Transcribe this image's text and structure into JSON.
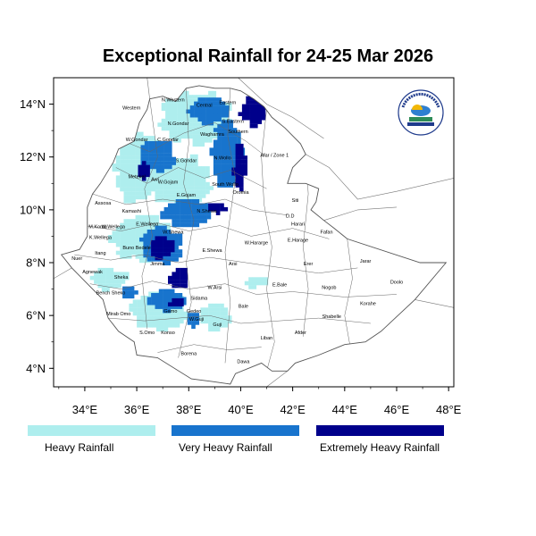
{
  "title": "Exceptional Rainfall for 24-25 Mar 2026",
  "axes": {
    "x_ticks": [
      "34°E",
      "36°E",
      "38°E",
      "40°E",
      "42°E",
      "44°E",
      "46°E",
      "48°E"
    ],
    "y_ticks": [
      "14°N",
      "12°N",
      "10°N",
      "8°N",
      "6°N",
      "4°N"
    ]
  },
  "legend": [
    {
      "label": "Heavy Rainfall",
      "color": "#aeeeee"
    },
    {
      "label": "Very Heavy Rainfall",
      "color": "#1874cd"
    },
    {
      "label": "Extremely Heavy Rainfall",
      "color": "#00008b"
    }
  ],
  "zones": [
    {
      "name": "Western",
      "lon": 35.8,
      "lat": 13.8
    },
    {
      "name": "N.Western",
      "lon": 37.4,
      "lat": 14.1
    },
    {
      "name": "Central",
      "lon": 38.6,
      "lat": 13.9
    },
    {
      "name": "Eastern",
      "lon": 39.5,
      "lat": 14.0
    },
    {
      "name": "N.Gondar",
      "lon": 37.6,
      "lat": 13.2
    },
    {
      "name": "S.Eastern",
      "lon": 39.7,
      "lat": 13.3
    },
    {
      "name": "Southern",
      "lon": 39.9,
      "lat": 12.9
    },
    {
      "name": "W.Gondar",
      "lon": 36.0,
      "lat": 12.6
    },
    {
      "name": "C.Gondar",
      "lon": 37.2,
      "lat": 12.6
    },
    {
      "name": "Waghamra",
      "lon": 38.9,
      "lat": 12.8
    },
    {
      "name": "Afar / Zone 1",
      "lon": 41.3,
      "lat": 12.0
    },
    {
      "name": "S.Gondar",
      "lon": 37.9,
      "lat": 11.8
    },
    {
      "name": "N.Wollo",
      "lon": 39.3,
      "lat": 11.9
    },
    {
      "name": "Metekel",
      "lon": 36.0,
      "lat": 11.2
    },
    {
      "name": "Awi",
      "lon": 36.7,
      "lat": 11.1
    },
    {
      "name": "W.Gojam",
      "lon": 37.2,
      "lat": 11.0
    },
    {
      "name": "South Wollo",
      "lon": 39.4,
      "lat": 10.9
    },
    {
      "name": "E.Gojam",
      "lon": 37.9,
      "lat": 10.5
    },
    {
      "name": "Oromia",
      "lon": 40.0,
      "lat": 10.6
    },
    {
      "name": "Siti",
      "lon": 42.1,
      "lat": 10.3
    },
    {
      "name": "Assosa",
      "lon": 34.7,
      "lat": 10.2
    },
    {
      "name": "Kamashi",
      "lon": 35.8,
      "lat": 9.9
    },
    {
      "name": "N.Shewa",
      "lon": 38.7,
      "lat": 9.9
    },
    {
      "name": "D.D",
      "lon": 41.9,
      "lat": 9.7
    },
    {
      "name": "Harari",
      "lon": 42.2,
      "lat": 9.4
    },
    {
      "name": "M.Komo",
      "lon": 34.5,
      "lat": 9.3
    },
    {
      "name": "E.Wellega",
      "lon": 36.4,
      "lat": 9.4
    },
    {
      "name": "W.Wellega",
      "lon": 35.1,
      "lat": 9.3
    },
    {
      "name": "W.Shewa",
      "lon": 37.4,
      "lat": 9.1
    },
    {
      "name": "Fafan",
      "lon": 43.3,
      "lat": 9.1
    },
    {
      "name": "K.Wellega",
      "lon": 34.6,
      "lat": 8.9
    },
    {
      "name": "E.Harage",
      "lon": 42.2,
      "lat": 8.8
    },
    {
      "name": "Buno Bedele",
      "lon": 36.0,
      "lat": 8.5
    },
    {
      "name": "W.Hararge",
      "lon": 40.6,
      "lat": 8.7
    },
    {
      "name": "Nuer",
      "lon": 33.7,
      "lat": 8.1
    },
    {
      "name": "Itang",
      "lon": 34.6,
      "lat": 8.3
    },
    {
      "name": "Jimma",
      "lon": 36.8,
      "lat": 7.9
    },
    {
      "name": "E.Shewa",
      "lon": 38.9,
      "lat": 8.4
    },
    {
      "name": "Arsi",
      "lon": 39.7,
      "lat": 7.9
    },
    {
      "name": "Erer",
      "lon": 42.6,
      "lat": 7.9
    },
    {
      "name": "Jarar",
      "lon": 44.8,
      "lat": 8.0
    },
    {
      "name": "Agnewak",
      "lon": 34.3,
      "lat": 7.6
    },
    {
      "name": "Sheka",
      "lon": 35.4,
      "lat": 7.4
    },
    {
      "name": "W.Arsi",
      "lon": 39.0,
      "lat": 7.0
    },
    {
      "name": "E.Bale",
      "lon": 41.5,
      "lat": 7.1
    },
    {
      "name": "Nogob",
      "lon": 43.4,
      "lat": 7.0
    },
    {
      "name": "Doolo",
      "lon": 46.0,
      "lat": 7.2
    },
    {
      "name": "Bench Sheko",
      "lon": 35.0,
      "lat": 6.8
    },
    {
      "name": "Sidama",
      "lon": 38.4,
      "lat": 6.6
    },
    {
      "name": "Korahe",
      "lon": 44.9,
      "lat": 6.4
    },
    {
      "name": "Bale",
      "lon": 40.1,
      "lat": 6.3
    },
    {
      "name": "Mirab Omo",
      "lon": 35.3,
      "lat": 6.0
    },
    {
      "name": "Gamo",
      "lon": 37.3,
      "lat": 6.1
    },
    {
      "name": "Gedeo",
      "lon": 38.2,
      "lat": 6.1
    },
    {
      "name": "Shabelle",
      "lon": 43.5,
      "lat": 5.9
    },
    {
      "name": "W.Guji",
      "lon": 38.3,
      "lat": 5.8
    },
    {
      "name": "Guji",
      "lon": 39.1,
      "lat": 5.6
    },
    {
      "name": "S.Omo",
      "lon": 36.4,
      "lat": 5.3
    },
    {
      "name": "Konso",
      "lon": 37.2,
      "lat": 5.3
    },
    {
      "name": "Afder",
      "lon": 42.3,
      "lat": 5.3
    },
    {
      "name": "Liban",
      "lon": 41.0,
      "lat": 5.1
    },
    {
      "name": "Borena",
      "lon": 38.0,
      "lat": 4.5
    },
    {
      "name": "Dawa",
      "lon": 40.1,
      "lat": 4.2
    }
  ],
  "rainfall_areas": [
    {
      "category": "heavy",
      "center": [
        36.0,
        11.5
      ],
      "radius": [
        0.95,
        1.4
      ]
    },
    {
      "category": "heavy",
      "center": [
        38.2,
        13.4
      ],
      "radius": [
        1.4,
        1.0
      ]
    },
    {
      "category": "heavy",
      "center": [
        37.6,
        11.0
      ],
      "radius": [
        1.2,
        1.0
      ]
    },
    {
      "category": "heavy",
      "center": [
        36.1,
        8.9
      ],
      "radius": [
        1.2,
        0.9
      ]
    },
    {
      "category": "heavy",
      "center": [
        36.8,
        6.1
      ],
      "radius": [
        1.1,
        0.7
      ]
    },
    {
      "category": "heavy",
      "center": [
        38.9,
        5.9
      ],
      "radius": [
        0.6,
        0.5
      ]
    },
    {
      "category": "heavy",
      "center": [
        34.9,
        7.3
      ],
      "radius": [
        0.7,
        0.4
      ]
    },
    {
      "category": "heavy",
      "center": [
        40.5,
        7.2
      ],
      "radius": [
        0.5,
        0.2
      ]
    },
    {
      "category": "very_heavy",
      "center": [
        36.7,
        12.0
      ],
      "radius": [
        0.7,
        0.6
      ]
    },
    {
      "category": "very_heavy",
      "center": [
        39.4,
        12.0
      ],
      "radius": [
        0.6,
        1.3
      ]
    },
    {
      "category": "very_heavy",
      "center": [
        38.7,
        13.7
      ],
      "radius": [
        0.8,
        0.5
      ]
    },
    {
      "category": "very_heavy",
      "center": [
        37.9,
        9.8
      ],
      "radius": [
        1.0,
        0.6
      ]
    },
    {
      "category": "very_heavy",
      "center": [
        36.9,
        8.6
      ],
      "radius": [
        0.8,
        0.7
      ]
    },
    {
      "category": "very_heavy",
      "center": [
        37.1,
        6.5
      ],
      "radius": [
        0.7,
        0.4
      ]
    },
    {
      "category": "very_heavy",
      "center": [
        35.6,
        6.8
      ],
      "radius": [
        0.3,
        0.3
      ]
    },
    {
      "category": "very_heavy",
      "center": [
        38.1,
        5.8
      ],
      "radius": [
        0.3,
        0.3
      ]
    },
    {
      "category": "extreme",
      "center": [
        40.4,
        13.7
      ],
      "radius": [
        0.5,
        0.6
      ]
    },
    {
      "category": "extreme",
      "center": [
        39.9,
        11.6
      ],
      "radius": [
        0.25,
        0.9
      ]
    },
    {
      "category": "extreme",
      "center": [
        36.9,
        8.5
      ],
      "radius": [
        0.5,
        0.4
      ]
    },
    {
      "category": "extreme",
      "center": [
        37.6,
        7.3
      ],
      "radius": [
        0.4,
        0.4
      ]
    },
    {
      "category": "extreme",
      "center": [
        36.2,
        11.4
      ],
      "radius": [
        0.3,
        0.3
      ]
    },
    {
      "category": "extreme",
      "center": [
        39.0,
        10.0
      ],
      "radius": [
        0.4,
        0.2
      ]
    },
    {
      "category": "extreme",
      "center": [
        37.5,
        6.4
      ],
      "radius": [
        0.3,
        0.2
      ]
    }
  ],
  "logo": {
    "text": "Ethiopian Meteorology Institute",
    "year": "EMI"
  }
}
